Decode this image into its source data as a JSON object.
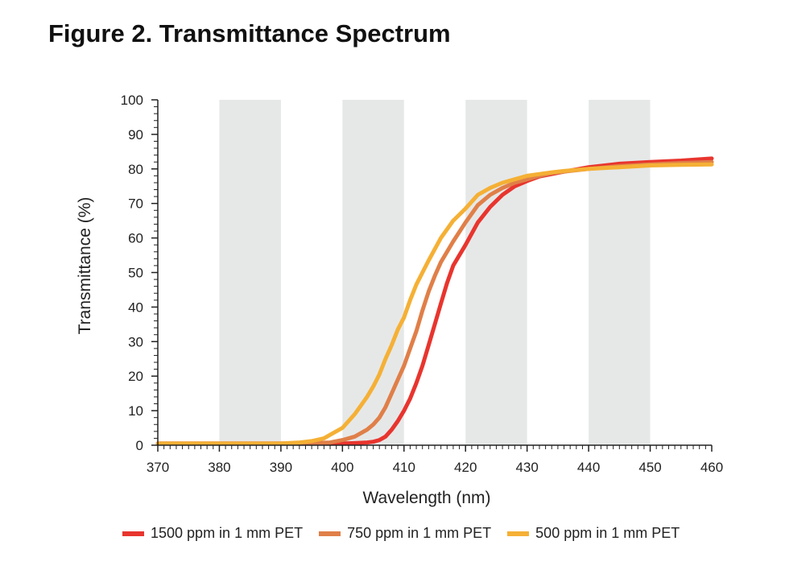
{
  "chart_data": {
    "type": "line",
    "title": "Figure 2. Transmittance Spectrum",
    "xlabel": "Wavelength (nm)",
    "ylabel": "Transmittance (%)",
    "xlim": [
      370,
      460
    ],
    "ylim": [
      0,
      100
    ],
    "xticks": [
      370,
      380,
      390,
      400,
      410,
      420,
      430,
      440,
      450,
      460
    ],
    "yticks": [
      0,
      10,
      20,
      30,
      40,
      50,
      60,
      70,
      80,
      90,
      100
    ],
    "shaded_bands": [
      [
        380,
        390
      ],
      [
        400,
        410
      ],
      [
        420,
        430
      ],
      [
        440,
        450
      ]
    ],
    "band_color": "#e6e8e8",
    "legend_position": "bottom",
    "series": [
      {
        "name": "1500 ppm in 1 mm PET",
        "color": "#e8352e",
        "x": [
          370,
          395,
          400,
          402,
          404,
          405,
          406,
          407,
          408,
          409,
          410,
          411,
          412,
          413,
          414,
          415,
          416,
          417,
          418,
          420,
          422,
          424,
          426,
          428,
          430,
          432,
          434,
          436,
          440,
          445,
          450,
          455,
          460
        ],
        "y": [
          0.5,
          0.5,
          0.5,
          0.6,
          0.8,
          1.0,
          1.5,
          2.5,
          4.5,
          7.0,
          10.0,
          13.5,
          18.0,
          23.0,
          29.0,
          35.0,
          41.0,
          47.0,
          52.0,
          58.0,
          64.5,
          69.0,
          72.5,
          75.0,
          76.5,
          77.8,
          78.5,
          79.2,
          80.5,
          81.5,
          82.0,
          82.4,
          83.0
        ]
      },
      {
        "name": "750 ppm in 1 mm PET",
        "color": "#e07f48",
        "x": [
          370,
          390,
          395,
          398,
          400,
          402,
          404,
          405,
          406,
          407,
          408,
          409,
          410,
          411,
          412,
          413,
          414,
          415,
          416,
          418,
          420,
          422,
          424,
          426,
          428,
          430,
          432,
          434,
          436,
          440,
          445,
          450,
          455,
          460
        ],
        "y": [
          0.5,
          0.5,
          0.6,
          0.8,
          1.5,
          2.5,
          4.5,
          6.0,
          8.0,
          11.0,
          15.0,
          19.0,
          23.0,
          28.0,
          33.0,
          39.0,
          44.5,
          49.0,
          53.0,
          59.0,
          64.5,
          69.5,
          72.5,
          74.5,
          76.0,
          77.0,
          78.0,
          78.8,
          79.2,
          80.0,
          80.8,
          81.3,
          81.7,
          82.0
        ]
      },
      {
        "name": "500 ppm in 1 mm PET",
        "color": "#f5b035",
        "x": [
          370,
          390,
          393,
          395,
          397,
          398,
          400,
          401,
          402,
          403,
          404,
          405,
          406,
          407,
          408,
          409,
          410,
          411,
          412,
          413,
          414,
          416,
          418,
          420,
          422,
          424,
          426,
          428,
          430,
          432,
          434,
          436,
          440,
          445,
          450,
          455,
          460
        ],
        "y": [
          0.5,
          0.5,
          0.8,
          1.2,
          2.0,
          3.0,
          5.0,
          7.0,
          9.0,
          11.5,
          14.0,
          17.0,
          20.5,
          25.0,
          29.0,
          33.5,
          37.0,
          42.0,
          46.5,
          50.0,
          53.5,
          60.0,
          65.0,
          68.5,
          72.5,
          74.5,
          76.0,
          77.0,
          78.0,
          78.5,
          79.0,
          79.4,
          80.0,
          80.5,
          81.0,
          81.2,
          81.3
        ]
      }
    ]
  }
}
